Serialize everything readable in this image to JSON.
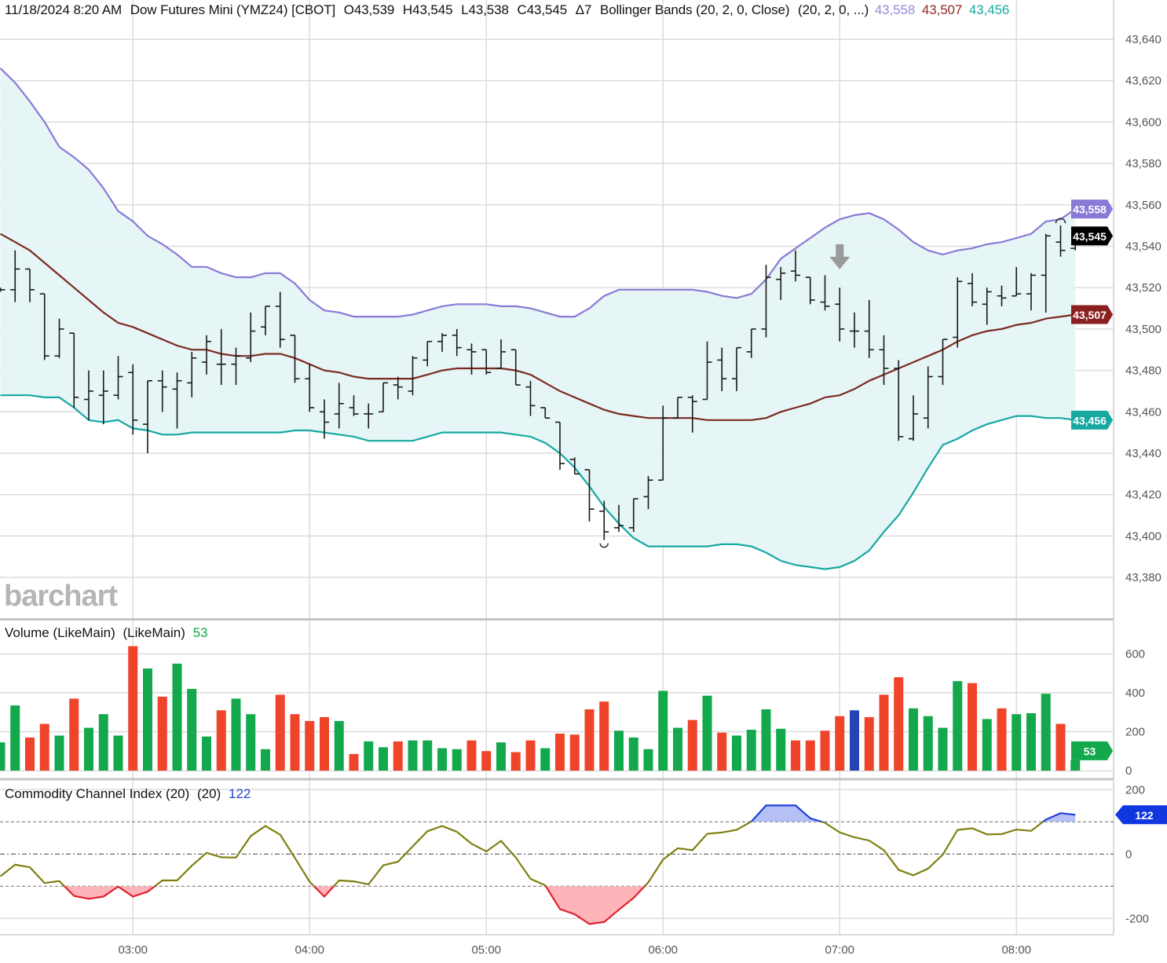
{
  "header": {
    "datetime": "11/18/2024 8:20 AM",
    "instrument": "Dow Futures Mini (YMZ24) [CBOT]",
    "open": "O43,539",
    "high": "H43,545",
    "low": "L43,538",
    "close": "C43,545",
    "change": "Δ7",
    "study": "Bollinger Bands (20, 2, 0, Close)",
    "study_params": "(20, 2, 0, ...)",
    "upper_value": "43,558",
    "middle_value": "43,507",
    "lower_value": "43,456"
  },
  "watermark": "barchart",
  "volume_panel": {
    "title": "Volume (LikeMain)",
    "params": "(LikeMain)",
    "value": "53"
  },
  "cci_panel": {
    "title": "Commodity Channel Index (20)",
    "params": "(20)",
    "value": "122"
  },
  "colors": {
    "upper_band": "#8a7ad6",
    "middle_band": "#7b2a24",
    "lower_band": "#17a8a2",
    "band_fill": "#e4f4f4",
    "bar": "#1a1a1a",
    "volume_up": "#12a84b",
    "volume_down": "#ef4429",
    "volume_selected": "#2545b5",
    "cci_line": "#7f7f12",
    "cci_over": "#1f3fd6",
    "cci_over_fill": "#b4c0f6",
    "cci_under": "#e0202e",
    "cci_under_fill": "#ffb4ba",
    "last_price_tag": "#000000",
    "grid": "#dcdcdc",
    "axis_text": "#555555"
  },
  "chart_data": [
    {
      "type": "ohlc",
      "title": "Dow Futures Mini (YMZ24) [CBOT]",
      "ylim": [
        43370,
        43650
      ],
      "grid": true,
      "x_tick_labels": [
        "03:00",
        "04:00",
        "05:00",
        "06:00",
        "07:00",
        "08:00"
      ],
      "y_tick_labels": [
        "43,640",
        "43,620",
        "43,600",
        "43,580",
        "43,560",
        "43,540",
        "43,520",
        "43,500",
        "43,480",
        "43,460",
        "43,440",
        "43,420",
        "43,400",
        "43,380"
      ],
      "x": [
        "02:15",
        "02:20",
        "02:25",
        "02:30",
        "02:35",
        "02:40",
        "02:45",
        "02:50",
        "02:55",
        "03:00",
        "03:05",
        "03:10",
        "03:15",
        "03:20",
        "03:25",
        "03:30",
        "03:35",
        "03:40",
        "03:45",
        "03:50",
        "03:55",
        "04:00",
        "04:05",
        "04:10",
        "04:15",
        "04:20",
        "04:25",
        "04:30",
        "04:35",
        "04:40",
        "04:45",
        "04:50",
        "04:55",
        "05:00",
        "05:05",
        "05:10",
        "05:15",
        "05:20",
        "05:25",
        "05:30",
        "05:35",
        "05:40",
        "05:45",
        "05:50",
        "05:55",
        "06:00",
        "06:05",
        "06:10",
        "06:15",
        "06:20",
        "06:25",
        "06:30",
        "06:35",
        "06:40",
        "06:45",
        "06:50",
        "06:55",
        "07:00",
        "07:05",
        "07:10",
        "07:15",
        "07:20",
        "07:25",
        "07:30",
        "07:35",
        "07:40",
        "07:45",
        "07:50",
        "07:55",
        "08:00",
        "08:05",
        "08:10",
        "08:15",
        "08:20"
      ],
      "ohlc": [
        [
          43519,
          43520,
          43518,
          43519
        ],
        [
          43519,
          43538,
          43513,
          43529
        ],
        [
          43529,
          43529,
          43513,
          43519
        ],
        [
          43517,
          43517,
          43485,
          43487
        ],
        [
          43487,
          43505,
          43486,
          43500
        ],
        [
          43498,
          43498,
          43462,
          43467
        ],
        [
          43466,
          43480,
          43456,
          43470
        ],
        [
          43468,
          43480,
          43454,
          43470
        ],
        [
          43468,
          43487,
          43466,
          43477
        ],
        [
          43479,
          43483,
          43449,
          43456
        ],
        [
          43454,
          43475,
          43440,
          43475
        ],
        [
          43475,
          43480,
          43460,
          43472
        ],
        [
          43471,
          43479,
          43452,
          43475
        ],
        [
          43474,
          43489,
          43467,
          43486
        ],
        [
          43484,
          43497,
          43478,
          43494
        ],
        [
          43483,
          43500,
          43473,
          43483
        ],
        [
          43483,
          43491,
          43473,
          43487
        ],
        [
          43486,
          43508,
          43484,
          43499
        ],
        [
          43501,
          43511,
          43497,
          43511
        ],
        [
          43511,
          43518,
          43491,
          43495
        ],
        [
          43497,
          43497,
          43474,
          43476
        ],
        [
          43476,
          43483,
          43460,
          43462
        ],
        [
          43460,
          43466,
          43447,
          43455
        ],
        [
          43459,
          43474,
          43452,
          43464
        ],
        [
          43462,
          43468,
          43458,
          43459
        ],
        [
          43459,
          43464,
          43452,
          43459
        ],
        [
          43460,
          43474,
          43460,
          43474
        ],
        [
          43473,
          43477,
          43466,
          43472
        ],
        [
          43470,
          43487,
          43468,
          43486
        ],
        [
          43485,
          43494,
          43482,
          43494
        ],
        [
          43494,
          43498,
          43489,
          43497
        ],
        [
          43497,
          43500,
          43487,
          43491
        ],
        [
          43490,
          43493,
          43478,
          43489
        ],
        [
          43490,
          43490,
          43478,
          43479
        ],
        [
          43481,
          43495,
          43481,
          43489
        ],
        [
          43490,
          43490,
          43473,
          43473
        ],
        [
          43472,
          43475,
          43458,
          43463
        ],
        [
          43462,
          43462,
          43457,
          43457
        ],
        [
          43455,
          43455,
          43432,
          43435
        ],
        [
          43437,
          43438,
          43430,
          43430
        ],
        [
          43432,
          43432,
          43407,
          43413
        ],
        [
          43412,
          43417,
          43398,
          43402
        ],
        [
          43404,
          43415,
          43402,
          43405
        ],
        [
          43404,
          43418,
          43402,
          43418
        ],
        [
          43419,
          43429,
          43413,
          43427
        ],
        [
          43427,
          43463,
          43427,
          43457
        ],
        [
          43457,
          43467,
          43457,
          43467
        ],
        [
          43467,
          43468,
          43450,
          43465
        ],
        [
          43466,
          43494,
          43466,
          43484
        ],
        [
          43485,
          43491,
          43470,
          43476
        ],
        [
          43476,
          43491,
          43470,
          43491
        ],
        [
          43489,
          43500,
          43486,
          43500
        ],
        [
          43500,
          43531,
          43496,
          43525
        ],
        [
          43524,
          43530,
          43514,
          43527
        ],
        [
          43528,
          43538,
          43523,
          43526
        ],
        [
          43525,
          43525,
          43512,
          43514
        ],
        [
          43513,
          43526,
          43509,
          43511
        ],
        [
          43512,
          43520,
          43494,
          43500
        ],
        [
          43499,
          43508,
          43491,
          43499
        ],
        [
          43499,
          43514,
          43486,
          43490
        ],
        [
          43490,
          43497,
          43473,
          43481
        ],
        [
          43481,
          43485,
          43446,
          43448
        ],
        [
          43447,
          43468,
          43446,
          43459
        ],
        [
          43457,
          43482,
          43452,
          43477
        ],
        [
          43477,
          43495,
          43473,
          43495
        ],
        [
          43496,
          43525,
          43491,
          43523
        ],
        [
          43522,
          43527,
          43511,
          43513
        ],
        [
          43512,
          43520,
          43502,
          43518
        ],
        [
          43516,
          43521,
          43511,
          43515
        ],
        [
          43516,
          43530,
          43516,
          43517
        ],
        [
          43517,
          43527,
          43509,
          43526
        ],
        [
          43526,
          43546,
          43508,
          43545
        ],
        [
          43542,
          43550,
          43535,
          43538
        ],
        [
          43539,
          43545,
          43538,
          43545
        ]
      ],
      "bollinger": {
        "upper": [
          43626,
          43619,
          43610,
          43600,
          43588,
          43583,
          43577,
          43568,
          43557,
          43552,
          43545,
          43541,
          43536,
          43530,
          43530,
          43527,
          43525,
          43525,
          43527,
          43527,
          43522,
          43514,
          43509,
          43508,
          43506,
          43506,
          43506,
          43506,
          43507,
          43509,
          43511,
          43512,
          43512,
          43512,
          43511,
          43511,
          43510,
          43508,
          43506,
          43506,
          43510,
          43516,
          43519,
          43519,
          43519,
          43519,
          43519,
          43519,
          43518,
          43516,
          43515,
          43517,
          43524,
          43534,
          43539,
          43544,
          43549,
          43553,
          43555,
          43556,
          43553,
          43548,
          43542,
          43538,
          43536,
          43538,
          43539,
          43541,
          43542,
          43544,
          43546,
          43552,
          43553,
          43558
        ],
        "middle": [
          43546,
          43542,
          43538,
          43532,
          43526,
          43520,
          43514,
          43508,
          43503,
          43501,
          43498,
          43495,
          43492,
          43490,
          43490,
          43488,
          43487,
          43487,
          43488,
          43488,
          43486,
          43483,
          43480,
          43479,
          43477,
          43476,
          43476,
          43476,
          43476,
          43478,
          43480,
          43481,
          43481,
          43481,
          43481,
          43480,
          43478,
          43474,
          43470,
          43467,
          43464,
          43461,
          43459,
          43458,
          43457,
          43457,
          43457,
          43457,
          43456,
          43456,
          43456,
          43456,
          43457,
          43460,
          43462,
          43464,
          43467,
          43468,
          43471,
          43475,
          43478,
          43481,
          43484,
          43487,
          43490,
          43494,
          43497,
          43499,
          43500,
          43502,
          43503,
          43505,
          43506,
          43507
        ],
        "lower": [
          43468,
          43468,
          43468,
          43467,
          43467,
          43462,
          43456,
          43455,
          43456,
          43452,
          43451,
          43449,
          43449,
          43450,
          43450,
          43450,
          43450,
          43450,
          43450,
          43450,
          43451,
          43451,
          43450,
          43449,
          43448,
          43446,
          43446,
          43446,
          43446,
          43448,
          43450,
          43450,
          43450,
          43450,
          43450,
          43449,
          43448,
          43445,
          43440,
          43433,
          43424,
          43414,
          43406,
          43399,
          43395,
          43395,
          43395,
          43395,
          43395,
          43396,
          43396,
          43395,
          43392,
          43388,
          43386,
          43385,
          43384,
          43385,
          43388,
          43393,
          43402,
          43410,
          43421,
          43433,
          43444,
          43447,
          43451,
          43454,
          43456,
          43458,
          43458,
          43457,
          43457,
          43456
        ]
      },
      "markers": [
        {
          "type": "arrow-down",
          "time": "07:00",
          "price": 43541
        },
        {
          "type": "low-marker",
          "time": "05:40",
          "price": 43398
        },
        {
          "type": "high-marker",
          "time": "08:15",
          "price": 43550
        }
      ],
      "value_tags": [
        {
          "label": "43,558",
          "price": 43558,
          "color": "#8a7ad6"
        },
        {
          "label": "43,545",
          "price": 43545,
          "color": "#000000"
        },
        {
          "label": "43,507",
          "price": 43507,
          "color": "#8b2020"
        },
        {
          "label": "43,456",
          "price": 43456,
          "color": "#17a8a2"
        }
      ]
    },
    {
      "type": "bar",
      "title": "Volume (LikeMain)",
      "ylim": [
        0,
        640
      ],
      "y_tick_labels": [
        "600",
        "400",
        "200",
        "0"
      ],
      "values": [
        145,
        335,
        170,
        240,
        180,
        370,
        220,
        290,
        180,
        640,
        525,
        380,
        550,
        420,
        175,
        310,
        370,
        290,
        110,
        390,
        290,
        255,
        275,
        255,
        85,
        150,
        120,
        150,
        155,
        155,
        115,
        110,
        155,
        100,
        145,
        95,
        155,
        115,
        190,
        185,
        315,
        355,
        205,
        170,
        110,
        410,
        220,
        260,
        385,
        195,
        180,
        210,
        315,
        215,
        155,
        155,
        205,
        280,
        310,
        275,
        390,
        480,
        320,
        280,
        220,
        460,
        450,
        265,
        320,
        290,
        295,
        395,
        240,
        53
      ],
      "direction": [
        "up",
        "up",
        "down",
        "down",
        "up",
        "down",
        "up",
        "up",
        "up",
        "down",
        "up",
        "down",
        "up",
        "up",
        "up",
        "down",
        "up",
        "up",
        "up",
        "down",
        "down",
        "down",
        "down",
        "up",
        "down",
        "up",
        "up",
        "down",
        "up",
        "up",
        "up",
        "up",
        "down",
        "down",
        "up",
        "down",
        "down",
        "up",
        "down",
        "down",
        "down",
        "down",
        "up",
        "up",
        "up",
        "up",
        "up",
        "down",
        "up",
        "down",
        "up",
        "up",
        "up",
        "up",
        "down",
        "down",
        "down",
        "down",
        "selected",
        "down",
        "down",
        "down",
        "up",
        "up",
        "up",
        "up",
        "down",
        "up",
        "down",
        "up",
        "up",
        "up",
        "down",
        "up"
      ],
      "value_tag": {
        "label": "53",
        "value": 53,
        "color": "#12a84b"
      }
    },
    {
      "type": "line",
      "title": "Commodity Channel Index (20)",
      "ylim": [
        -240,
        240
      ],
      "y_tick_labels": [
        "200",
        "0",
        "-200"
      ],
      "levels": [
        100,
        0,
        -100
      ],
      "values": [
        -69,
        -33,
        -41,
        -90,
        -84,
        -130,
        -139,
        -132,
        -101,
        -132,
        -117,
        -82,
        -82,
        -36,
        4,
        -10,
        -11,
        56,
        87,
        60,
        -12,
        -86,
        -132,
        -82,
        -85,
        -94,
        -35,
        -24,
        24,
        71,
        87,
        69,
        32,
        8,
        41,
        -11,
        -77,
        -97,
        -171,
        -187,
        -217,
        -211,
        -173,
        -136,
        -88,
        -17,
        18,
        12,
        63,
        67,
        75,
        101,
        151,
        151,
        151,
        111,
        97,
        67,
        52,
        42,
        12,
        -49,
        -66,
        -45,
        -2,
        75,
        80,
        61,
        62,
        76,
        72,
        107,
        127,
        122
      ],
      "value_tag": {
        "label": "122",
        "value": 122,
        "color": "#1036e0"
      }
    }
  ]
}
